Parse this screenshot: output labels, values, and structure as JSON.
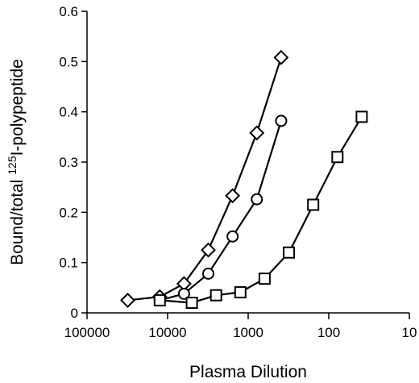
{
  "chart_data": {
    "type": "line",
    "title": "",
    "xlabel": "Plasma Dilution",
    "ylabel_prefix": "Bound/total ",
    "ylabel_superscript": "125",
    "ylabel_suffix": "I-polypeptide",
    "x_scale": "log",
    "x_reversed": true,
    "xlim": [
      100000,
      10
    ],
    "ylim": [
      0,
      0.6
    ],
    "x_ticks": [
      {
        "value": 100000,
        "label": "100000"
      },
      {
        "value": 10000,
        "label": "10000"
      },
      {
        "value": 1000,
        "label": "1000"
      },
      {
        "value": 100,
        "label": "100"
      },
      {
        "value": 10,
        "label": "10"
      }
    ],
    "y_ticks": [
      {
        "value": 0,
        "label": "0"
      },
      {
        "value": 0.1,
        "label": "0.1"
      },
      {
        "value": 0.2,
        "label": "0.2"
      },
      {
        "value": 0.3,
        "label": "0.3"
      },
      {
        "value": 0.4,
        "label": "0.4"
      },
      {
        "value": 0.5,
        "label": "0.5"
      },
      {
        "value": 0.6,
        "label": "0.6"
      }
    ],
    "grid": false,
    "legend": "none",
    "series": [
      {
        "marker": "diamond",
        "points": [
          {
            "x": 31250,
            "y": 0.025
          },
          {
            "x": 12500,
            "y": 0.032
          },
          {
            "x": 6250,
            "y": 0.058
          },
          {
            "x": 3125,
            "y": 0.125
          },
          {
            "x": 1562,
            "y": 0.233
          },
          {
            "x": 781,
            "y": 0.358
          },
          {
            "x": 390,
            "y": 0.508
          }
        ]
      },
      {
        "marker": "circle",
        "points": [
          {
            "x": 12500,
            "y": 0.025
          },
          {
            "x": 6250,
            "y": 0.038
          },
          {
            "x": 3125,
            "y": 0.078
          },
          {
            "x": 1562,
            "y": 0.152
          },
          {
            "x": 781,
            "y": 0.226
          },
          {
            "x": 390,
            "y": 0.382
          }
        ]
      },
      {
        "marker": "square",
        "points": [
          {
            "x": 12500,
            "y": 0.025
          },
          {
            "x": 5000,
            "y": 0.02
          },
          {
            "x": 2500,
            "y": 0.035
          },
          {
            "x": 1250,
            "y": 0.041
          },
          {
            "x": 625,
            "y": 0.068
          },
          {
            "x": 312,
            "y": 0.12
          },
          {
            "x": 156,
            "y": 0.215
          },
          {
            "x": 78,
            "y": 0.31
          },
          {
            "x": 39,
            "y": 0.39
          }
        ]
      }
    ]
  }
}
